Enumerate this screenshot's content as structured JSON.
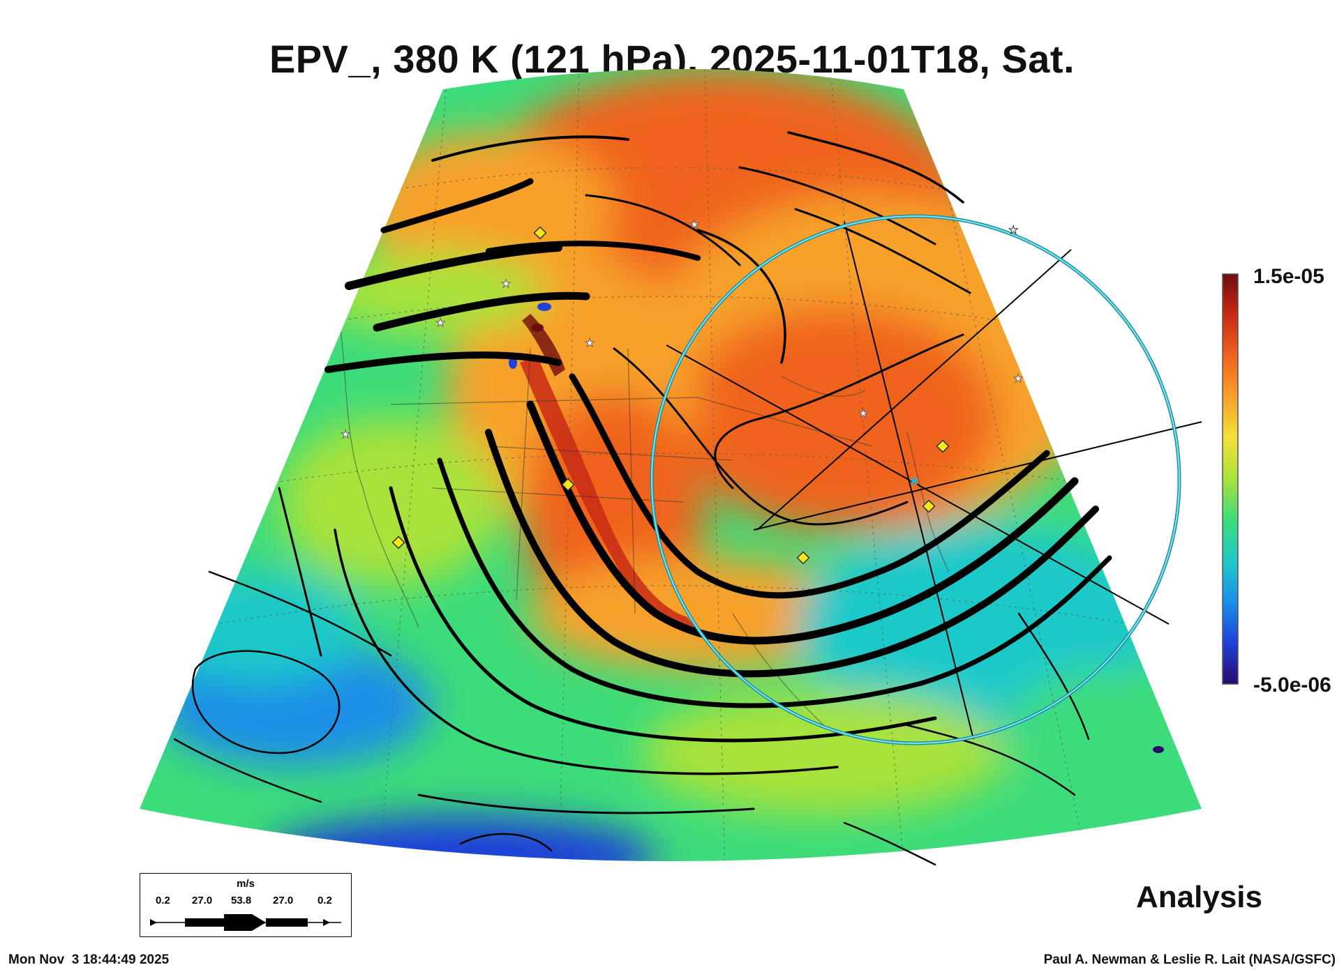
{
  "title": "EPV_, 380 K (121 hPa), 2025-11-01T18, Sat.",
  "colorbar": {
    "max_label": "1.5e-05",
    "min_label": "-5.0e-06",
    "colors": [
      "#2a0a6e",
      "#1f3fd9",
      "#1a8fe6",
      "#1fc9c9",
      "#3ddc7a",
      "#a8e23a",
      "#f2e13a",
      "#f7a12a",
      "#f0641f",
      "#c92a14",
      "#6e0d0d"
    ]
  },
  "wind_legend": {
    "unit": "m/s",
    "ticks": [
      "0.2",
      "27.0",
      "53.8",
      "27.0",
      "0.2"
    ]
  },
  "label_analysis": "Analysis",
  "footer": {
    "timestamp": "Mon Nov  3 18:44:49 2025",
    "credit": "Paul A. Newman & Leslie R. Lait (NASA/GSFC)"
  },
  "colors": {
    "ring": "#2bb3c9",
    "streamline": "#000000",
    "marker_star": "#ffffff",
    "marker_diamond": "#f5e51b"
  }
}
